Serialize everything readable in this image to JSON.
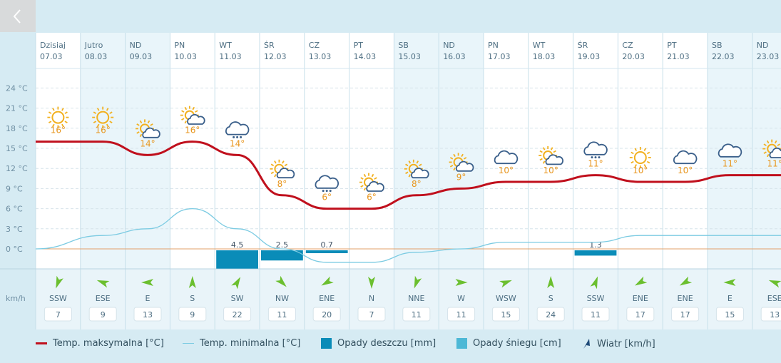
{
  "nav": {
    "back_glyph": "‹"
  },
  "legend": {
    "max_temp": "Temp. maksymalna [°C]",
    "min_temp": "Temp. minimalna [°C]",
    "rain": "Opady deszczu [mm]",
    "snow": "Opady śniegu [cm]",
    "wind": "Wiatr [km/h]"
  },
  "colors": {
    "max_line": "#c0101d",
    "min_line": "#7ccbe2",
    "rain_bar": "#0a8cb8",
    "snow_bar": "#4db8d6",
    "sun": "#f2b01e",
    "cloud": "#3a5f8a",
    "wind_arrow": "#6bbf2f",
    "zero_line": "#e3a06a"
  },
  "chart_data": {
    "type": "line",
    "y_unit": "°C",
    "yticks": [
      "24 °C",
      "21 °C",
      "18 °C",
      "15 °C",
      "12 °C",
      "9 °C",
      "6 °C",
      "3 °C",
      "0 °C"
    ],
    "ylim": [
      0,
      24
    ],
    "wind_unit": "km/h",
    "days": [
      {
        "name": "Dzisiaj",
        "date": "07.03",
        "icon": "sun-icon",
        "tmax": 16,
        "tmin": 0,
        "rain": null,
        "wind_dir": "SSW",
        "wind_speed": 7,
        "wind_rot": 200
      },
      {
        "name": "Jutro",
        "date": "08.03",
        "icon": "sun-icon",
        "tmax": 16,
        "tmin": 2,
        "rain": null,
        "wind_dir": "ESE",
        "wind_speed": 9,
        "wind_rot": 290
      },
      {
        "name": "ND",
        "date": "09.03",
        "icon": "partly-cloudy-icon",
        "tmax": 14,
        "tmin": 3,
        "rain": null,
        "wind_dir": "E",
        "wind_speed": 13,
        "wind_rot": 270
      },
      {
        "name": "PN",
        "date": "10.03",
        "icon": "partly-cloudy-icon",
        "tmax": 16,
        "tmin": 6,
        "rain": null,
        "wind_dir": "S",
        "wind_speed": 9,
        "wind_rot": 0
      },
      {
        "name": "WT",
        "date": "11.03",
        "icon": "rain-cloud-icon",
        "tmax": 14,
        "tmin": 3,
        "rain": 4.5,
        "wind_dir": "SW",
        "wind_speed": 22,
        "wind_rot": 30
      },
      {
        "name": "ŚR",
        "date": "12.03",
        "icon": "partly-cloudy-icon",
        "tmax": 8,
        "tmin": 0,
        "rain": 2.5,
        "wind_dir": "NW",
        "wind_speed": 11,
        "wind_rot": 135
      },
      {
        "name": "CZ",
        "date": "13.03",
        "icon": "rain-cloud-icon",
        "tmax": 6,
        "tmin": -2,
        "rain": 0.7,
        "wind_dir": "ENE",
        "wind_speed": 20,
        "wind_rot": 240
      },
      {
        "name": "PT",
        "date": "14.03",
        "icon": "partly-cloudy-icon",
        "tmax": 6,
        "tmin": -2,
        "rain": null,
        "wind_dir": "N",
        "wind_speed": 7,
        "wind_rot": 180
      },
      {
        "name": "SB",
        "date": "15.03",
        "icon": "partly-cloudy-icon",
        "tmax": 8,
        "tmin": -0.5,
        "rain": null,
        "wind_dir": "NNE",
        "wind_speed": 11,
        "wind_rot": 200
      },
      {
        "name": "ND",
        "date": "16.03",
        "icon": "partly-cloudy-icon",
        "tmax": 9,
        "tmin": 0,
        "rain": null,
        "wind_dir": "W",
        "wind_speed": 11,
        "wind_rot": 90
      },
      {
        "name": "PN",
        "date": "17.03",
        "icon": "cloud-icon",
        "tmax": 10,
        "tmin": 1,
        "rain": null,
        "wind_dir": "WSW",
        "wind_speed": 15,
        "wind_rot": 70
      },
      {
        "name": "WT",
        "date": "18.03",
        "icon": "partly-cloudy-icon",
        "tmax": 10,
        "tmin": 1,
        "rain": null,
        "wind_dir": "S",
        "wind_speed": 24,
        "wind_rot": 0
      },
      {
        "name": "ŚR",
        "date": "19.03",
        "icon": "rain-cloud-icon",
        "tmax": 11,
        "tmin": 1,
        "rain": 1.3,
        "wind_dir": "SSW",
        "wind_speed": 11,
        "wind_rot": 20
      },
      {
        "name": "CZ",
        "date": "20.03",
        "icon": "sun-icon",
        "tmax": 10,
        "tmin": 2,
        "rain": null,
        "wind_dir": "ENE",
        "wind_speed": 17,
        "wind_rot": 240
      },
      {
        "name": "PT",
        "date": "21.03",
        "icon": "cloud-icon",
        "tmax": 10,
        "tmin": 2,
        "rain": null,
        "wind_dir": "ENE",
        "wind_speed": 17,
        "wind_rot": 240
      },
      {
        "name": "SB",
        "date": "22.03",
        "icon": "cloud-icon",
        "tmax": 11,
        "tmin": 2,
        "rain": null,
        "wind_dir": "E",
        "wind_speed": 15,
        "wind_rot": 270
      },
      {
        "name": "ND",
        "date": "23.03",
        "icon": "partly-cloudy-icon",
        "tmax": 11,
        "tmin": 2,
        "rain": null,
        "wind_dir": "ESE",
        "wind_speed": 13,
        "wind_rot": 290
      }
    ]
  }
}
